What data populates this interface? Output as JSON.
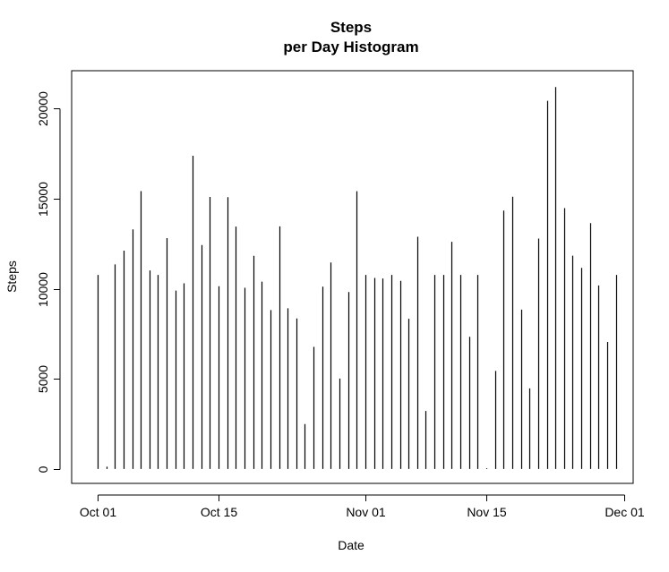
{
  "chart_data": {
    "type": "bar",
    "title": [
      "Steps",
      "per Day Histogram"
    ],
    "xlabel": "Date",
    "ylabel": "Steps",
    "x_tick_labels": [
      "Oct 01",
      "Oct 15",
      "Nov 01",
      "Nov 15",
      "Dec 01"
    ],
    "x_tick_dates": [
      "2012-10-01",
      "2012-10-15",
      "2012-11-01",
      "2012-11-15",
      "2012-12-01"
    ],
    "y_tick_labels": [
      "0",
      "5000",
      "10000",
      "15000",
      "20000"
    ],
    "y_tick_values": [
      0,
      5000,
      10000,
      15000,
      20000
    ],
    "xlim": [
      "2012-09-28",
      "2012-12-02"
    ],
    "ylim": [
      -800,
      22100
    ],
    "grid": false,
    "dates": [
      "2012-10-01",
      "2012-10-02",
      "2012-10-03",
      "2012-10-04",
      "2012-10-05",
      "2012-10-06",
      "2012-10-07",
      "2012-10-08",
      "2012-10-09",
      "2012-10-10",
      "2012-10-11",
      "2012-10-12",
      "2012-10-13",
      "2012-10-14",
      "2012-10-15",
      "2012-10-16",
      "2012-10-17",
      "2012-10-18",
      "2012-10-19",
      "2012-10-20",
      "2012-10-21",
      "2012-10-22",
      "2012-10-23",
      "2012-10-24",
      "2012-10-25",
      "2012-10-26",
      "2012-10-27",
      "2012-10-28",
      "2012-10-29",
      "2012-10-30",
      "2012-10-31",
      "2012-11-01",
      "2012-11-02",
      "2012-11-03",
      "2012-11-04",
      "2012-11-05",
      "2012-11-06",
      "2012-11-07",
      "2012-11-08",
      "2012-11-09",
      "2012-11-10",
      "2012-11-11",
      "2012-11-12",
      "2012-11-13",
      "2012-11-14",
      "2012-11-15",
      "2012-11-16",
      "2012-11-17",
      "2012-11-18",
      "2012-11-19",
      "2012-11-20",
      "2012-11-21",
      "2012-11-22",
      "2012-11-23",
      "2012-11-24",
      "2012-11-25",
      "2012-11-26",
      "2012-11-27",
      "2012-11-28",
      "2012-11-29",
      "2012-11-30"
    ],
    "values": [
      10766,
      126,
      11352,
      12116,
      13294,
      15420,
      11015,
      10766,
      12811,
      9900,
      10304,
      17382,
      12426,
      15098,
      10139,
      15084,
      13452,
      10056,
      11829,
      10395,
      8821,
      13460,
      8918,
      8355,
      2492,
      6778,
      10119,
      11458,
      5018,
      9819,
      15414,
      10766,
      10600,
      10571,
      10766,
      10439,
      8334,
      12883,
      3219,
      10766,
      10766,
      12608,
      10765,
      7336,
      10766,
      41,
      5441,
      14339,
      15110,
      8841,
      4472,
      12787,
      20427,
      21194,
      14478,
      11834,
      11162,
      13646,
      10183,
      7047,
      10766
    ]
  }
}
